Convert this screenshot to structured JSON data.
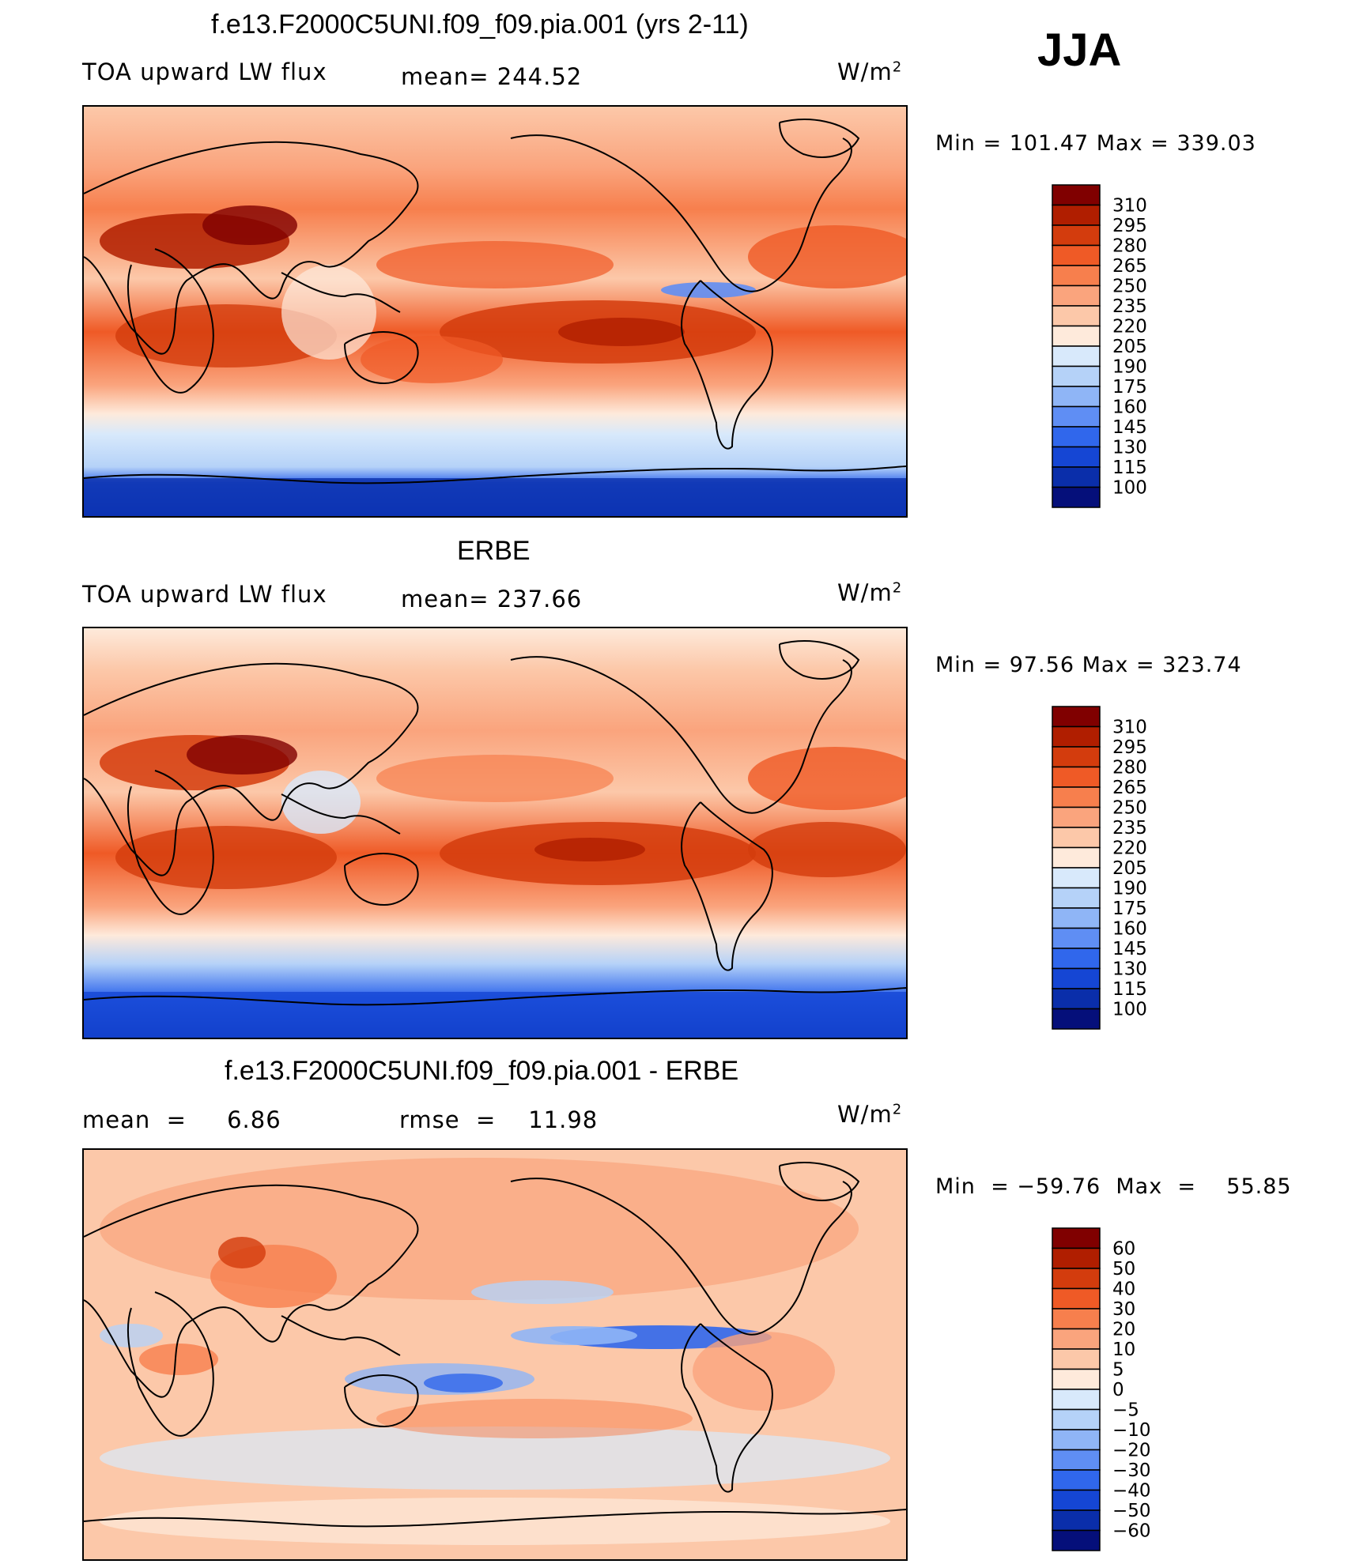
{
  "season": "JJA",
  "panels": [
    {
      "id": "model",
      "title": "f.e13.F2000C5UNI.f09_f09.pia.001 (yrs 2-11)",
      "left_label": "TOA upward LW flux",
      "center_label": "mean= 244.52",
      "units": "W/m",
      "units_exp": "2",
      "minmax": "Min  =  101.47  Max  =  339.03",
      "colorbar": {
        "colors": [
          "#800000",
          "#b01e00",
          "#d33c0d",
          "#ef5a26",
          "#f77f4d",
          "#faa47d",
          "#fcc8a9",
          "#feeadb",
          "#d8e9fb",
          "#b5d2f8",
          "#8fb5f6",
          "#5f8ef4",
          "#3067ec",
          "#1546d4",
          "#0a2eaa",
          "#050f7a"
        ],
        "labels": [
          "310",
          "295",
          "280",
          "265",
          "250",
          "235",
          "220",
          "205",
          "190",
          "175",
          "160",
          "145",
          "130",
          "115",
          "100"
        ]
      }
    },
    {
      "id": "obs",
      "title": "ERBE",
      "left_label": "TOA upward LW flux",
      "center_label": "mean= 237.66",
      "units": "W/m",
      "units_exp": "2",
      "minmax": "Min  =   97.56  Max  =  323.74",
      "colorbar": {
        "colors": [
          "#800000",
          "#b01e00",
          "#d33c0d",
          "#ef5a26",
          "#f77f4d",
          "#faa47d",
          "#fcc8a9",
          "#feeadb",
          "#d8e9fb",
          "#b5d2f8",
          "#8fb5f6",
          "#5f8ef4",
          "#3067ec",
          "#1546d4",
          "#0a2eaa",
          "#050f7a"
        ],
        "labels": [
          "310",
          "295",
          "280",
          "265",
          "250",
          "235",
          "220",
          "205",
          "190",
          "175",
          "160",
          "145",
          "130",
          "115",
          "100"
        ]
      }
    },
    {
      "id": "diff",
      "title": "f.e13.F2000C5UNI.f09_f09.pia.001 - ERBE",
      "left_label": "mean  =     6.86",
      "center_label": "rmse  =    11.98",
      "units": "W/m",
      "units_exp": "2",
      "minmax": "Min  = −59.76  Max  =    55.85",
      "colorbar": {
        "colors": [
          "#800000",
          "#b01e00",
          "#d33c0d",
          "#ef5a26",
          "#f77f4d",
          "#faa47d",
          "#fcc8a9",
          "#feeadb",
          "#d8e9fb",
          "#b5d2f8",
          "#8fb5f6",
          "#5f8ef4",
          "#3067ec",
          "#1546d4",
          "#0a2eaa",
          "#050f7a"
        ],
        "labels": [
          "60",
          "50",
          "40",
          "30",
          "20",
          "10",
          "5",
          "0",
          "−5",
          "−10",
          "−20",
          "−30",
          "−40",
          "−50",
          "−60"
        ]
      }
    }
  ]
}
